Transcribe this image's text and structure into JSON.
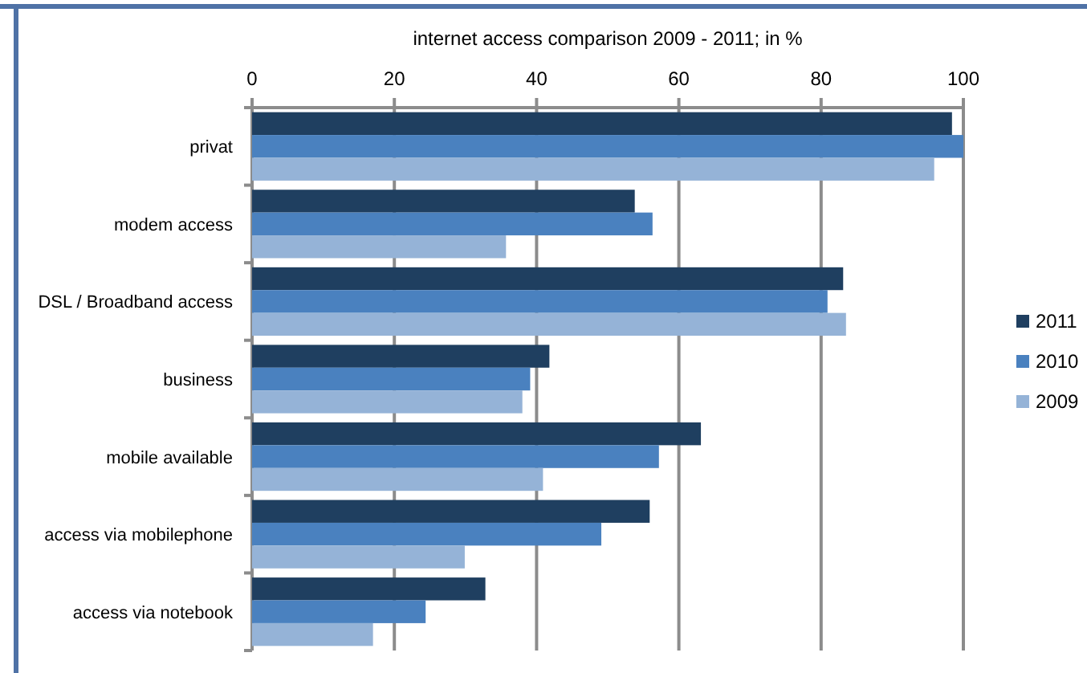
{
  "chart_data": {
    "type": "bar",
    "orientation": "horizontal",
    "title": "internet access comparison 2009  - 2011;  in %",
    "categories": [
      "privat",
      "modem access",
      "DSL / Broadband access",
      "business",
      "mobile available",
      "access via mobilephone",
      "access via notebook"
    ],
    "series": [
      {
        "name": "2011",
        "color": "#1f3f60",
        "values": [
          98.4,
          53.8,
          83.1,
          41.8,
          63.1,
          55.9,
          32.8
        ]
      },
      {
        "name": "2010",
        "color": "#4a81bf",
        "values": [
          100,
          56.3,
          80.9,
          39.1,
          57.2,
          49.1,
          24.4
        ]
      },
      {
        "name": "2009",
        "color": "#95b3d7",
        "values": [
          95.9,
          35.7,
          83.5,
          38.0,
          40.9,
          29.9,
          17.0
        ]
      }
    ],
    "xlim": [
      0,
      100
    ],
    "xticks": [
      0,
      20,
      40,
      60,
      80,
      100
    ],
    "grid": "x",
    "legend": "right"
  }
}
